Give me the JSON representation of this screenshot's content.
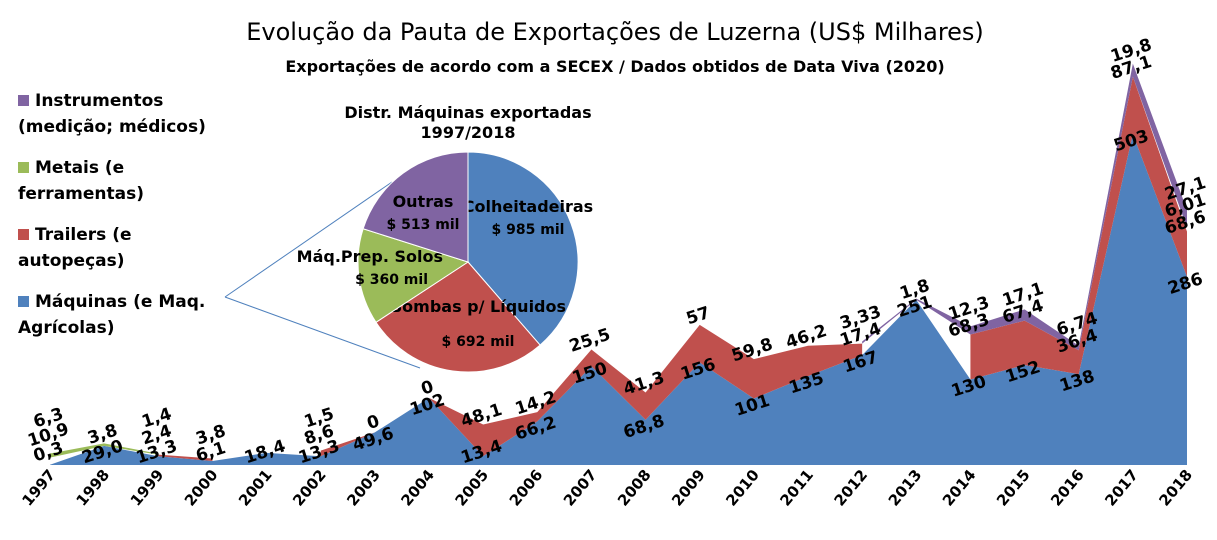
{
  "chart_data": [
    {
      "type": "area",
      "title": "Evolução da Pauta de Exportações de Luzerna (US$ Milhares)",
      "subtitle": "Exportações de acordo com a SECEX / Dados obtidos de Data Viva (2020)",
      "categories": [
        "1997",
        "1998",
        "1999",
        "2000",
        "2001",
        "2002",
        "2003",
        "2004",
        "2005",
        "2006",
        "2007",
        "2008",
        "2009",
        "2010",
        "2011",
        "2012",
        "2013",
        "2014",
        "2015",
        "2016",
        "2017",
        "2018"
      ],
      "ylim": [
        0,
        620
      ],
      "series": [
        {
          "name": "Máquinas (e Maq. Agrícolas)",
          "color": "#4f81bd",
          "values": [
            0.3,
            29.0,
            13.3,
            6.1,
            18.4,
            13.3,
            49.6,
            102,
            13.4,
            66.2,
            150,
            68.8,
            156,
            101,
            135,
            167,
            251,
            130,
            152,
            138,
            503,
            286
          ],
          "value_labels": [
            "0,3",
            "29,0",
            "13,3",
            "6,1",
            "18,4",
            "13,3",
            "49,6",
            "102",
            "13,4",
            "66,2",
            "150",
            "68,8",
            "156",
            "101",
            "135",
            "167",
            "251",
            "130",
            "152",
            "138",
            "503",
            "286"
          ]
        },
        {
          "name": "Trailers (e autopeças)",
          "color": "#c0504d",
          "values": [
            10.9,
            null,
            2.4,
            3.8,
            null,
            8.6,
            0,
            0,
            48.1,
            14.2,
            25.5,
            41.3,
            57,
            59.8,
            46.2,
            17.4,
            null,
            68.3,
            67.4,
            36.4,
            87.1,
            68.6
          ],
          "value_labels": [
            "10,9",
            null,
            "2,4",
            "3,8",
            null,
            "8,6",
            "0",
            "0",
            "48,1",
            "14,2",
            "25,5",
            "41,3",
            "57",
            "59,8",
            "46,2",
            "17,4",
            null,
            "68,3",
            "67,4",
            "36,4",
            "87,1",
            "68,6"
          ]
        },
        {
          "name": "Metais (e ferramentas)",
          "color": "#9bbb59",
          "values": [
            6.3,
            3.8,
            1.4,
            null,
            null,
            1.5,
            null,
            null,
            null,
            null,
            null,
            null,
            null,
            null,
            null,
            null,
            null,
            null,
            null,
            null,
            null,
            6.01
          ],
          "value_labels": [
            "6,3",
            "3,8",
            "1,4",
            null,
            null,
            "1,5",
            null,
            null,
            null,
            null,
            null,
            null,
            null,
            null,
            null,
            null,
            null,
            null,
            null,
            null,
            null,
            "6,01"
          ]
        },
        {
          "name": "Instrumentos (medição; médicos)",
          "color": "#8064a2",
          "values": [
            null,
            null,
            null,
            null,
            null,
            null,
            null,
            null,
            null,
            null,
            null,
            null,
            null,
            null,
            null,
            3.33,
            1.8,
            12.3,
            17.1,
            6.74,
            19.8,
            27.1
          ],
          "value_labels": [
            null,
            null,
            null,
            null,
            null,
            null,
            null,
            null,
            null,
            null,
            null,
            null,
            null,
            null,
            null,
            "3,33",
            "1,8",
            "12,3",
            "17,1",
            "6,74",
            "19,8",
            "27,1"
          ]
        }
      ]
    },
    {
      "type": "pie",
      "title": "Distr. Máquinas exportadas 1997/2018",
      "categories": [
        "Colheitadeiras",
        "Bombas p/ Líquidos",
        "Máq.Prep. Solos",
        "Outras"
      ],
      "values": [
        985,
        692,
        360,
        513
      ],
      "value_labels": [
        "$ 985 mil",
        "$ 692 mil",
        "$ 360 mil",
        "$ 513 mil"
      ],
      "colors": [
        "#4f81bd",
        "#c0504d",
        "#9bbb59",
        "#8064a2"
      ]
    }
  ]
}
